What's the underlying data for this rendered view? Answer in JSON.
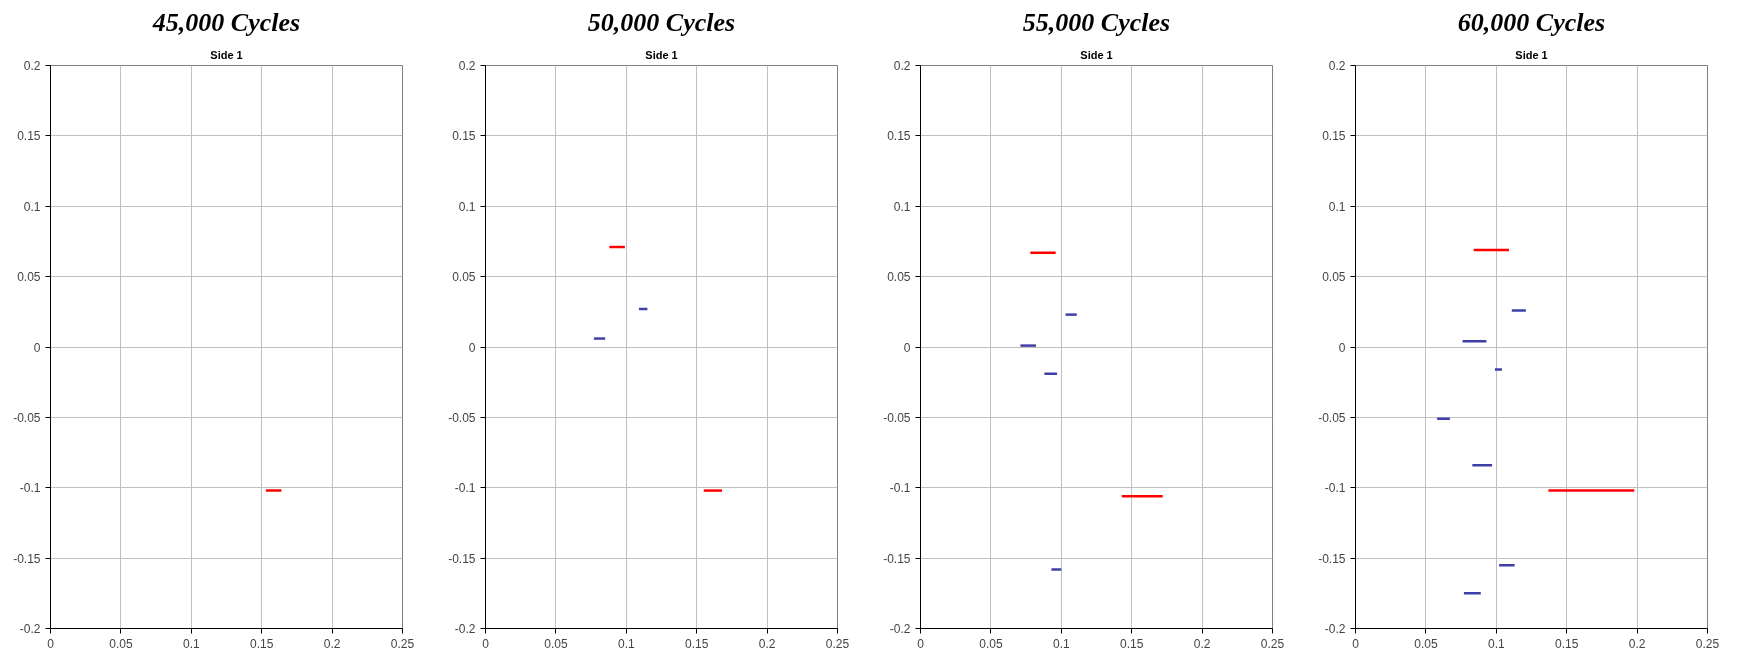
{
  "chart_data": [
    {
      "type": "line",
      "title": "45,000 Cycles",
      "subtitle": "Side 1",
      "xlim": [
        0,
        0.25
      ],
      "xticks": [
        0,
        0.05,
        0.1,
        0.15,
        0.2,
        0.25
      ],
      "ylim": [
        -0.2,
        0.2
      ],
      "yticks": [
        -0.2,
        -0.15,
        -0.1,
        -0.05,
        0,
        0.05,
        0.1,
        0.15,
        0.2
      ],
      "grid": true,
      "marker": "none",
      "line_style": "solid",
      "series": [
        {
          "color": "#ff0000",
          "x": [
            0.153,
            0.164
          ],
          "values": [
            -0.102,
            -0.102
          ]
        }
      ]
    },
    {
      "type": "line",
      "title": "50,000 Cycles",
      "subtitle": "Side 1",
      "xlim": [
        0,
        0.25
      ],
      "xticks": [
        0,
        0.05,
        0.1,
        0.15,
        0.2,
        0.25
      ],
      "ylim": [
        -0.2,
        0.2
      ],
      "yticks": [
        -0.2,
        -0.15,
        -0.1,
        -0.05,
        0,
        0.05,
        0.1,
        0.15,
        0.2
      ],
      "grid": true,
      "marker": "none",
      "line_style": "solid",
      "series": [
        {
          "color": "#ff0000",
          "x": [
            0.088,
            0.099
          ],
          "values": [
            0.071,
            0.071
          ]
        },
        {
          "color": "#3f3fa8",
          "x": [
            0.077,
            0.085
          ],
          "values": [
            0.006,
            0.006
          ]
        },
        {
          "color": "#3f3fa8",
          "x": [
            0.109,
            0.115
          ],
          "values": [
            0.027,
            0.027
          ]
        },
        {
          "color": "#ff0000",
          "x": [
            0.155,
            0.168
          ],
          "values": [
            -0.102,
            -0.102
          ]
        }
      ]
    },
    {
      "type": "line",
      "title": "55,000 Cycles",
      "subtitle": "Side 1",
      "xlim": [
        0,
        0.25
      ],
      "xticks": [
        0,
        0.05,
        0.1,
        0.15,
        0.2,
        0.25
      ],
      "ylim": [
        -0.2,
        0.2
      ],
      "yticks": [
        -0.2,
        -0.15,
        -0.1,
        -0.05,
        0,
        0.05,
        0.1,
        0.15,
        0.2
      ],
      "grid": true,
      "marker": "none",
      "line_style": "solid",
      "series": [
        {
          "color": "#ff0000",
          "x": [
            0.078,
            0.096
          ],
          "values": [
            0.067,
            0.067
          ]
        },
        {
          "color": "#3f3fa8",
          "x": [
            0.103,
            0.111
          ],
          "values": [
            0.023,
            0.023
          ]
        },
        {
          "color": "#3f3fa8",
          "x": [
            0.071,
            0.082
          ],
          "values": [
            0.001,
            0.001
          ]
        },
        {
          "color": "#3f3fa8",
          "x": [
            0.088,
            0.097
          ],
          "values": [
            -0.019,
            -0.019
          ]
        },
        {
          "color": "#3f3fa8",
          "x": [
            0.093,
            0.1
          ],
          "values": [
            -0.158,
            -0.158
          ]
        },
        {
          "color": "#ff0000",
          "x": [
            0.143,
            0.172
          ],
          "values": [
            -0.106,
            -0.106
          ]
        }
      ]
    },
    {
      "type": "line",
      "title": "60,000 Cycles",
      "subtitle": "Side 1",
      "xlim": [
        0,
        0.25
      ],
      "xticks": [
        0,
        0.05,
        0.1,
        0.15,
        0.2,
        0.25
      ],
      "ylim": [
        -0.2,
        0.2
      ],
      "yticks": [
        -0.2,
        -0.15,
        -0.1,
        -0.05,
        0,
        0.05,
        0.1,
        0.15,
        0.2
      ],
      "grid": true,
      "marker": "none",
      "line_style": "solid",
      "series": [
        {
          "color": "#ff0000",
          "x": [
            0.084,
            0.109
          ],
          "values": [
            0.069,
            0.069
          ]
        },
        {
          "color": "#3f3fa8",
          "x": [
            0.111,
            0.121
          ],
          "values": [
            0.026,
            0.026
          ]
        },
        {
          "color": "#3f3fa8",
          "x": [
            0.076,
            0.093
          ],
          "values": [
            0.004,
            0.004
          ]
        },
        {
          "color": "#3f3fa8",
          "x": [
            0.099,
            0.104
          ],
          "values": [
            -0.016,
            -0.016
          ]
        },
        {
          "color": "#3f3fa8",
          "x": [
            0.058,
            0.067
          ],
          "values": [
            -0.051,
            -0.051
          ]
        },
        {
          "color": "#3f3fa8",
          "x": [
            0.083,
            0.097
          ],
          "values": [
            -0.084,
            -0.084
          ]
        },
        {
          "color": "#ff0000",
          "x": [
            0.137,
            0.198
          ],
          "values": [
            -0.102,
            -0.102
          ]
        },
        {
          "color": "#3f3fa8",
          "x": [
            0.102,
            0.113
          ],
          "values": [
            -0.155,
            -0.155
          ]
        },
        {
          "color": "#3f3fa8",
          "x": [
            0.077,
            0.089
          ],
          "values": [
            -0.175,
            -0.175
          ]
        }
      ]
    }
  ]
}
